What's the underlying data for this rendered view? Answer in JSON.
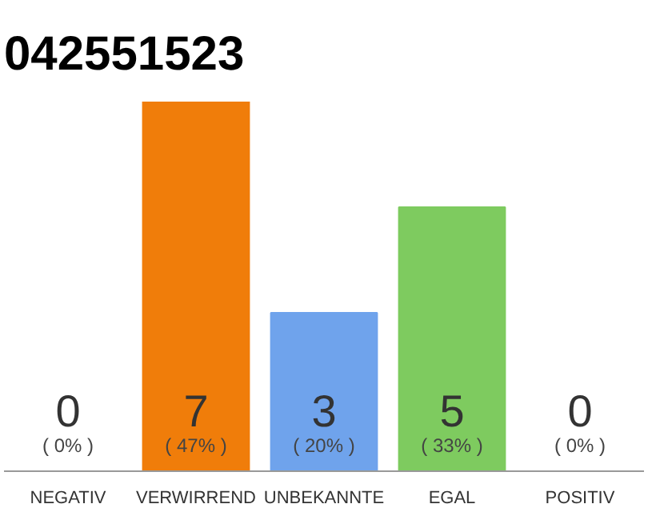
{
  "chart_data": {
    "type": "bar",
    "title": "042551523",
    "categories": [
      "NEGATIV",
      "VERWIRREND",
      "UNBEKANNTE",
      "EGAL",
      "POSITIV"
    ],
    "values": [
      0,
      7,
      3,
      5,
      0
    ],
    "colors": [
      "#f07d0a",
      "#f07d0a",
      "#6fa3ec",
      "#7ecb5f",
      "#7ecb5f"
    ],
    "data_labels": true,
    "annotations": [
      "( 0% )",
      "( 47% )",
      "( 20% )",
      "( 33% )",
      "( 0% )"
    ],
    "grid": false
  }
}
